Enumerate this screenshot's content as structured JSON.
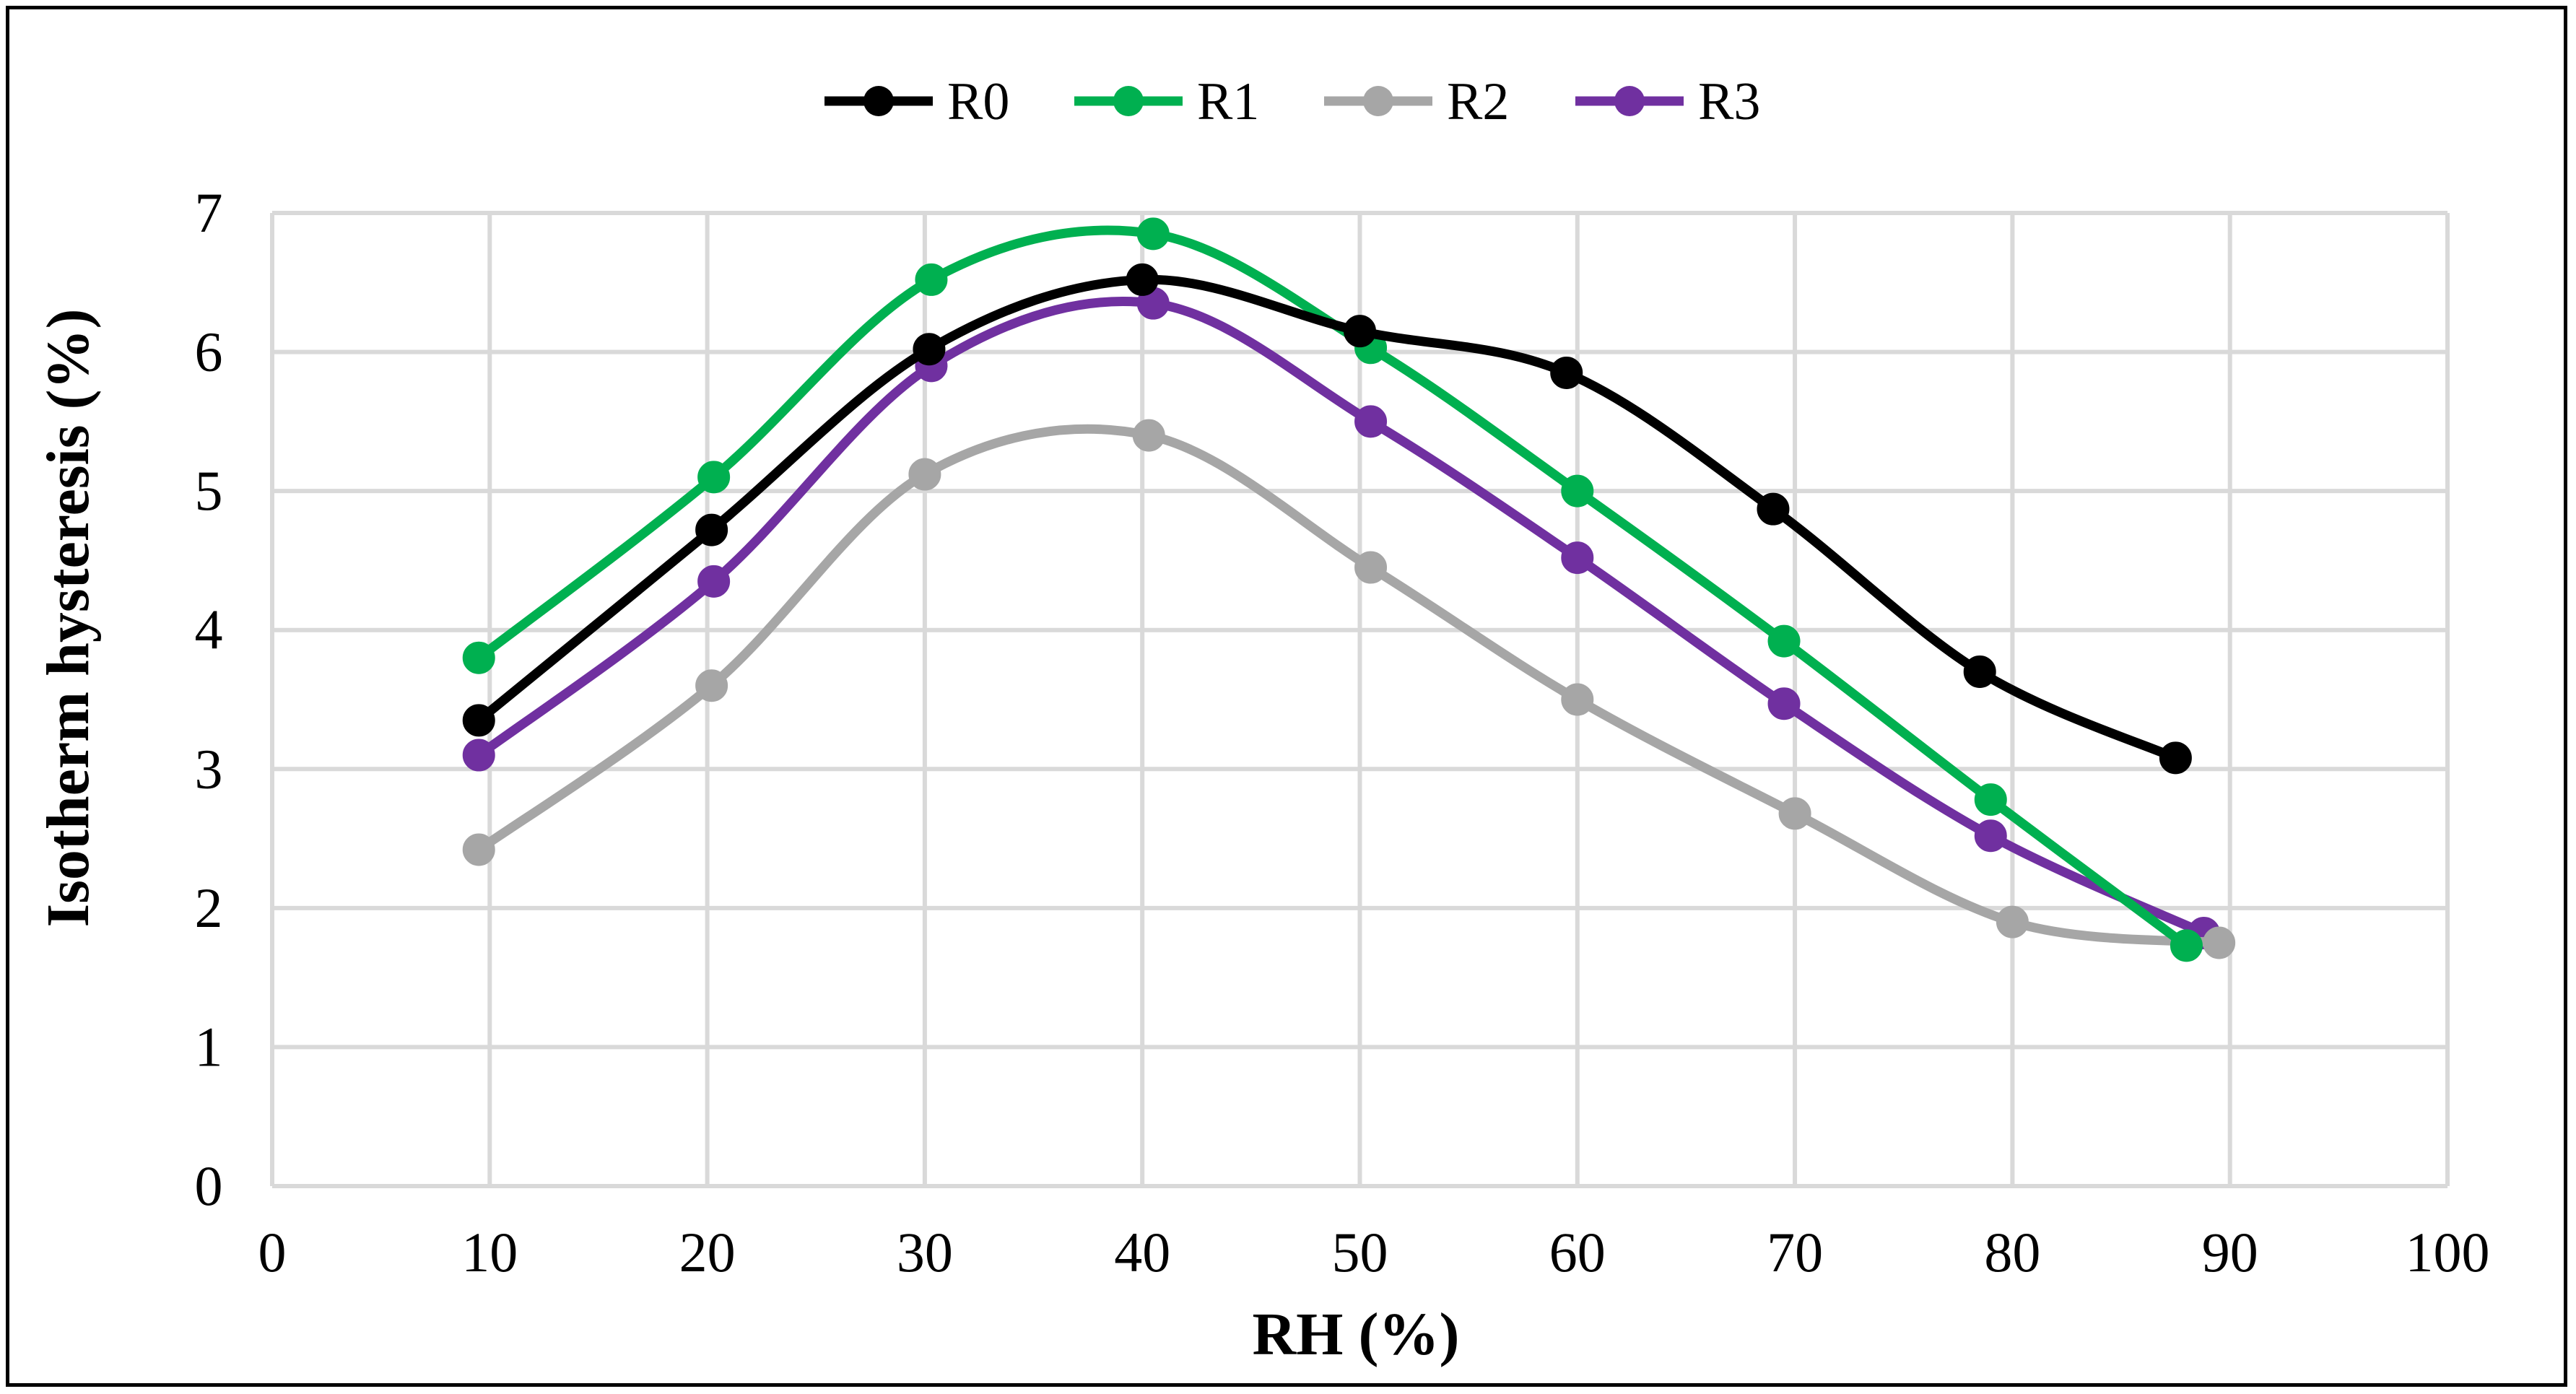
{
  "chart_data": {
    "type": "line",
    "title": "",
    "xlabel": "RH (%)",
    "ylabel": "Isotherm hysteresis  (%)",
    "xlim": [
      0,
      100
    ],
    "ylim": [
      0,
      7
    ],
    "xticks": [
      0,
      10,
      20,
      30,
      40,
      50,
      60,
      70,
      80,
      90,
      100
    ],
    "yticks": [
      0,
      1,
      2,
      3,
      4,
      5,
      6,
      7
    ],
    "grid": true,
    "smooth": true,
    "legend_position": "top-center",
    "series": [
      {
        "name": "R0",
        "color": "#000000",
        "points": [
          [
            9.5,
            3.35
          ],
          [
            20.2,
            4.72
          ],
          [
            30.2,
            6.02
          ],
          [
            40.0,
            6.52
          ],
          [
            50.0,
            6.15
          ],
          [
            59.5,
            5.85
          ],
          [
            69.0,
            4.87
          ],
          [
            78.5,
            3.7
          ],
          [
            87.5,
            3.08
          ]
        ]
      },
      {
        "name": "R1",
        "color": "#00B050",
        "points": [
          [
            9.5,
            3.8
          ],
          [
            20.3,
            5.1
          ],
          [
            30.3,
            6.52
          ],
          [
            40.5,
            6.85
          ],
          [
            50.5,
            6.03
          ],
          [
            60.0,
            5.0
          ],
          [
            69.5,
            3.92
          ],
          [
            79.0,
            2.78
          ],
          [
            88.0,
            1.73
          ]
        ]
      },
      {
        "name": "R2",
        "color": "#A6A6A6",
        "points": [
          [
            9.5,
            2.42
          ],
          [
            20.2,
            3.6
          ],
          [
            30.0,
            5.12
          ],
          [
            40.3,
            5.4
          ],
          [
            50.5,
            4.45
          ],
          [
            60.0,
            3.5
          ],
          [
            70.0,
            2.68
          ],
          [
            80.0,
            1.9
          ],
          [
            89.5,
            1.75
          ]
        ]
      },
      {
        "name": "R3",
        "color": "#7030A0",
        "points": [
          [
            9.5,
            3.1
          ],
          [
            20.3,
            4.35
          ],
          [
            30.3,
            5.9
          ],
          [
            40.5,
            6.35
          ],
          [
            50.5,
            5.5
          ],
          [
            60.0,
            4.52
          ],
          [
            69.5,
            3.47
          ],
          [
            79.0,
            2.52
          ],
          [
            88.8,
            1.82
          ]
        ]
      }
    ]
  }
}
